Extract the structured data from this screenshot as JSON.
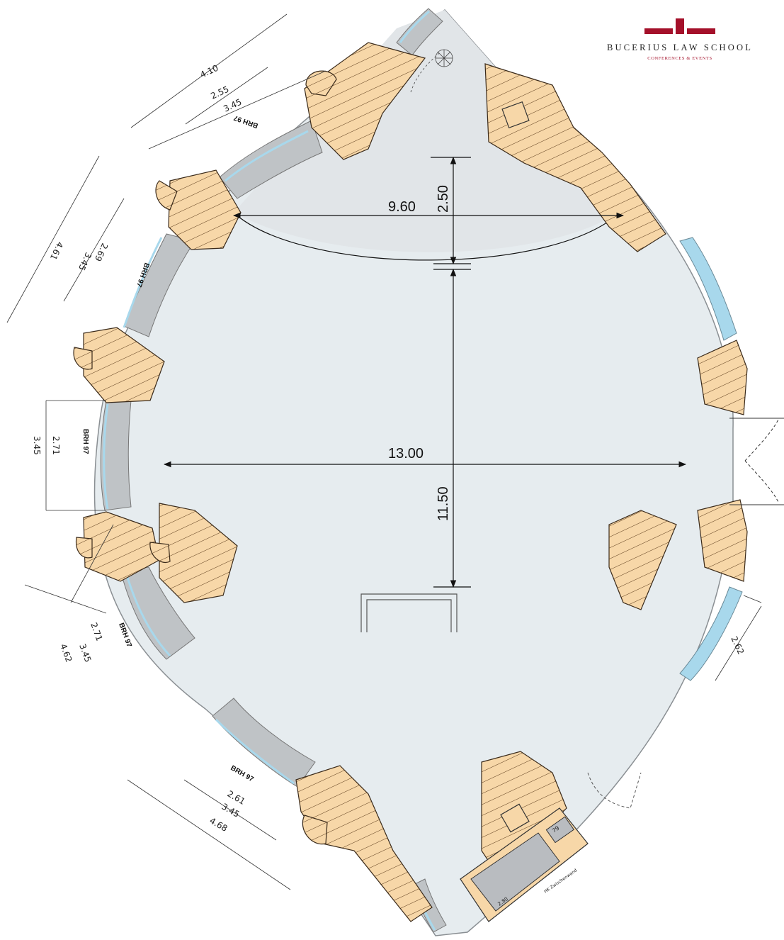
{
  "logo": {
    "name": "BUCERIUS LAW SCHOOL",
    "subtitle": "CONFERENCES & EVENTS",
    "brand_color": "#a4102a"
  },
  "dimensions": {
    "width_main": "13.00",
    "length_main": "11.50",
    "width_apse": "9.60",
    "depth_apse": "2.50",
    "right_window": "2.62"
  },
  "window_groups": [
    {
      "label": "BRH 97",
      "dims": [
        "4.10",
        "2.55",
        "3.45"
      ]
    },
    {
      "label": "BRH 97",
      "dims": [
        "4.61",
        "3.45",
        "2.69"
      ]
    },
    {
      "label": "BRH 97",
      "dims": [
        "3.45",
        "2.71"
      ]
    },
    {
      "label": "BRH 97",
      "dims": [
        "4.62",
        "3.45",
        "2.71"
      ]
    },
    {
      "label": "BRH 97",
      "dims": [
        "2.61",
        "3.45",
        "4.68"
      ]
    }
  ],
  "service_room": {
    "label": "HK Zwischenwand",
    "dim": "2.80",
    "small": "79"
  },
  "colors": {
    "floor": "#e6ecef",
    "apse_floor": "#e1e5e8",
    "wall_fill": "#f7d7a8",
    "wall_hatch": "#5a3a1a",
    "window_glass": "#a8d8ec",
    "sill": "#bfc3c6"
  }
}
